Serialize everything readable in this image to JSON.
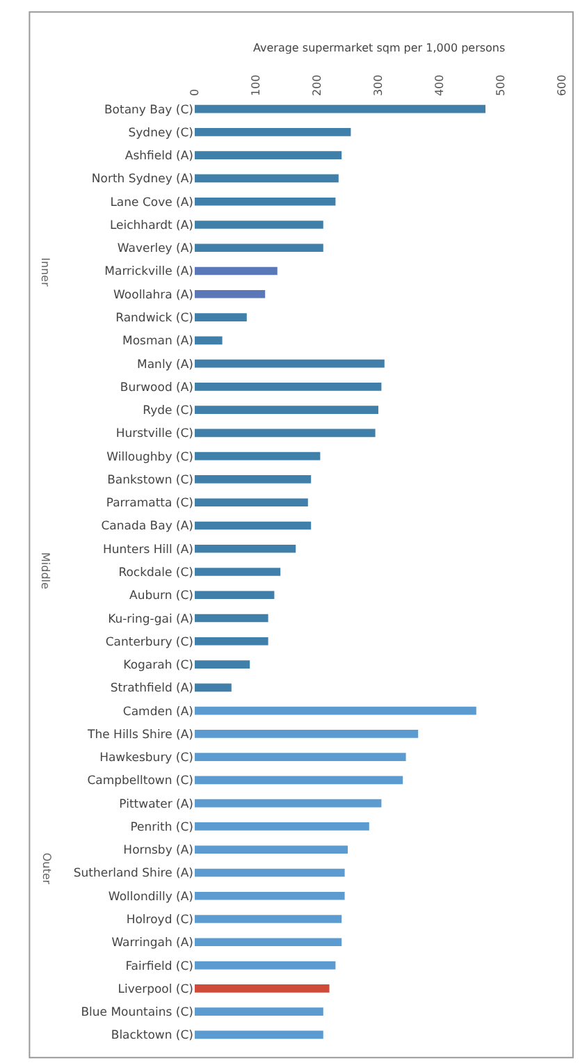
{
  "chart_data": {
    "type": "bar",
    "orientation": "horizontal",
    "title": "Average supermarket sqm per 1,000 persons",
    "categories": [
      "Botany Bay (C)",
      "Sydney (C)",
      "Ashfield (A)",
      "North Sydney (A)",
      "Lane Cove (A)",
      "Leichhardt (A)",
      "Waverley (A)",
      "Marrickville (A)",
      "Woollahra (A)",
      "Randwick (C)",
      "Mosman (A)",
      "Manly (A)",
      "Burwood (A)",
      "Ryde (C)",
      "Hurstville (C)",
      "Willoughby (C)",
      "Bankstown (C)",
      "Parramatta (C)",
      "Canada Bay (A)",
      "Hunters Hill (A)",
      "Rockdale (C)",
      "Auburn (C)",
      "Ku-ring-gai (A)",
      "Canterbury (C)",
      "Kogarah (C)",
      "Strathfield (A)",
      "Camden (A)",
      "The Hills Shire (A)",
      "Hawkesbury (C)",
      "Campbelltown (C)",
      "Pittwater (A)",
      "Penrith (C)",
      "Hornsby (A)",
      "Sutherland Shire (A)",
      "Wollondilly (A)",
      "Holroyd (C)",
      "Warringah (A)",
      "Fairfield (C)",
      "Liverpool (C)",
      "Blue Mountains (C)",
      "Blacktown (C)"
    ],
    "values": [
      475,
      255,
      240,
      235,
      230,
      210,
      210,
      135,
      115,
      85,
      45,
      310,
      305,
      300,
      295,
      205,
      190,
      185,
      190,
      165,
      140,
      130,
      120,
      120,
      90,
      60,
      460,
      365,
      345,
      340,
      305,
      285,
      250,
      245,
      245,
      240,
      240,
      230,
      220,
      210,
      210
    ],
    "colors": [
      "#3f7faa",
      "#3f7faa",
      "#3f7faa",
      "#3f7faa",
      "#3f7faa",
      "#3f7faa",
      "#3f7faa",
      "#5a78b8",
      "#5a78b8",
      "#3f7faa",
      "#3f7faa",
      "#3f7faa",
      "#3f7faa",
      "#3f7faa",
      "#3f7faa",
      "#3f7faa",
      "#3f7faa",
      "#3f7faa",
      "#3f7faa",
      "#3f7faa",
      "#3f7faa",
      "#3f7faa",
      "#3f7faa",
      "#3f7faa",
      "#3f7faa",
      "#3f7faa",
      "#5b9bd0",
      "#5b9bd0",
      "#5b9bd0",
      "#5b9bd0",
      "#5b9bd0",
      "#5b9bd0",
      "#5b9bd0",
      "#5b9bd0",
      "#5b9bd0",
      "#5b9bd0",
      "#5b9bd0",
      "#5b9bd0",
      "#d04a3a",
      "#5b9bd0",
      "#5b9bd0"
    ],
    "xlim": [
      0,
      600
    ],
    "xticks": [
      0,
      100,
      200,
      300,
      400,
      500,
      600
    ],
    "grid": false,
    "annotations": [
      "Inner",
      "Middle",
      "Outer"
    ]
  }
}
